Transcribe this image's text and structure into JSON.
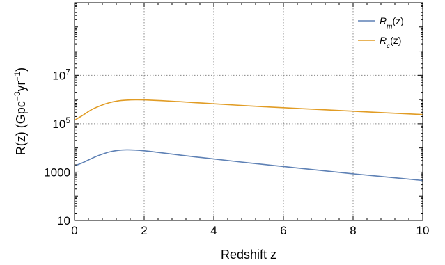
{
  "chart_data": {
    "type": "line",
    "title": "",
    "xlabel": "Redshift z",
    "ylabel": "R(z) (Gpc",
    "ylabel_exp1": "−3",
    "ylabel_mid": "yr",
    "ylabel_exp2": "−1",
    "ylabel_end": ")",
    "xlim": [
      0,
      10
    ],
    "ylim": [
      10,
      10000000000
    ],
    "yscale": "log",
    "grid": true,
    "legend_position": "top-right",
    "x_ticks": [
      {
        "value": 0,
        "label": "0"
      },
      {
        "value": 2,
        "label": "2"
      },
      {
        "value": 4,
        "label": "4"
      },
      {
        "value": 6,
        "label": "6"
      },
      {
        "value": 8,
        "label": "8"
      },
      {
        "value": 10,
        "label": "10"
      }
    ],
    "y_ticks": [
      {
        "value": 10,
        "base": "10",
        "exp": ""
      },
      {
        "value": 1000,
        "base": "1000",
        "exp": ""
      },
      {
        "value": 100000,
        "base": "10",
        "exp": "5"
      },
      {
        "value": 10000000,
        "base": "10",
        "exp": "7"
      }
    ],
    "series": [
      {
        "name": "R",
        "name_sub": "m",
        "name_suffix": "(z)",
        "color": "#5E81B5",
        "x": [
          0,
          0.25,
          0.5,
          0.75,
          1.0,
          1.25,
          1.5,
          1.75,
          2.0,
          2.5,
          3,
          3.5,
          4,
          5,
          6,
          7,
          8,
          9,
          10
        ],
        "y": [
          1800,
          2500,
          3700,
          5200,
          6800,
          7900,
          8300,
          8100,
          7600,
          6300,
          5100,
          4200,
          3500,
          2400,
          1700,
          1200,
          850,
          620,
          450
        ]
      },
      {
        "name": "R",
        "name_sub": "c",
        "name_suffix": "(z)",
        "color": "#E19C24",
        "x": [
          0,
          0.25,
          0.5,
          0.75,
          1.0,
          1.25,
          1.5,
          1.75,
          2.0,
          2.5,
          3,
          3.5,
          4,
          5,
          6,
          7,
          8,
          9,
          10
        ],
        "y": [
          140000,
          230000,
          390000,
          560000,
          740000,
          880000,
          950000,
          980000,
          970000,
          900000,
          820000,
          740000,
          670000,
          550000,
          460000,
          390000,
          330000,
          280000,
          240000
        ]
      }
    ]
  }
}
